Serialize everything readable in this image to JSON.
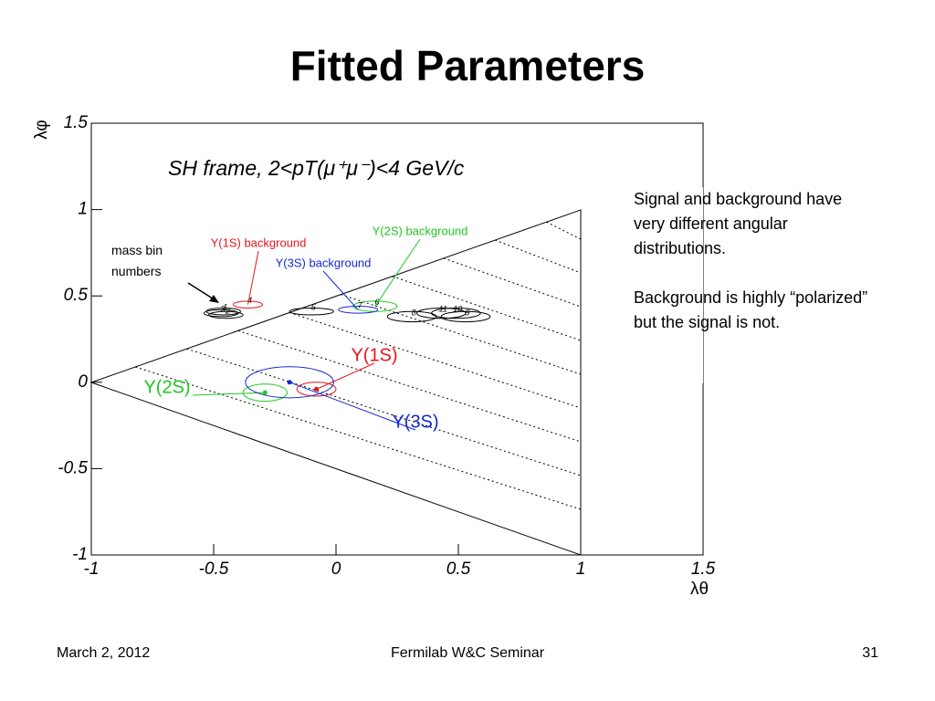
{
  "title": "Fitted Parameters",
  "side_text": [
    "Signal and background have very different angular distributions.",
    "Background is highly “polarized” but the signal is not."
  ],
  "annotation": "mass bin numbers",
  "footer": {
    "date": "March 2, 2012",
    "event": "Fermilab W&C Seminar",
    "page": "31"
  },
  "chart_data": {
    "type": "scatter",
    "title": "SH frame, 2<pT(μ⁺μ⁻)<4 GeV/c",
    "xlabel": "λθ",
    "ylabel": "λφ",
    "xlim": [
      -1,
      1.5
    ],
    "ylim": [
      -1,
      1.5
    ],
    "xticks": [
      -1,
      -0.5,
      0,
      0.5,
      1,
      1.5
    ],
    "yticks": [
      -1,
      -0.5,
      0,
      0.5,
      1,
      1.5
    ],
    "series": [
      {
        "name": "Y(1S)",
        "color": "#e8141c",
        "markers": true,
        "x": [
          -0.08
        ],
        "values": [
          -0.04
        ],
        "x_err": [
          0.08
        ],
        "y_err": [
          0.04
        ]
      },
      {
        "name": "Y(2S)",
        "color": "#1ec81e",
        "markers": true,
        "x": [
          -0.29
        ],
        "values": [
          -0.06
        ],
        "x_err": [
          0.09
        ],
        "y_err": [
          0.05
        ]
      },
      {
        "name": "Y(3S)",
        "color": "#1428d2",
        "markers": true,
        "x": [
          -0.19
        ],
        "values": [
          0.0
        ],
        "x_err": [
          0.18
        ],
        "y_err": [
          0.09
        ]
      },
      {
        "name": "Y(1S) background",
        "color": "#e8141c",
        "x": [
          -0.36
        ],
        "values": [
          0.45
        ],
        "x_err": [
          0.06
        ],
        "y_err": [
          0.02
        ],
        "labels": [
          "4"
        ]
      },
      {
        "name": "Y(2S) background",
        "color": "#1ec81e",
        "x": [
          0.16
        ],
        "values": [
          0.44
        ],
        "x_err": [
          0.09
        ],
        "y_err": [
          0.03
        ],
        "labels": [
          "6"
        ]
      },
      {
        "name": "Y(3S) background",
        "color": "#1428d2",
        "x": [
          0.09
        ],
        "values": [
          0.42
        ],
        "x_err": [
          0.08
        ],
        "y_err": [
          0.02
        ],
        "labels": [
          "7"
        ]
      },
      {
        "color": "#000000",
        "x": [
          -0.46,
          -0.45,
          -0.47,
          -0.1,
          0.31,
          0.53,
          0.49,
          0.43
        ],
        "values": [
          0.41,
          0.39,
          0.4,
          0.41,
          0.38,
          0.38,
          0.4,
          0.4
        ],
        "x_err": [
          0.07,
          0.07,
          0.07,
          0.09,
          0.1,
          0.1,
          0.1,
          0.1
        ],
        "y_err": [
          0.02,
          0.02,
          0.02,
          0.02,
          0.03,
          0.03,
          0.03,
          0.03
        ],
        "labels": [
          "1",
          "2",
          "3",
          "5",
          "8",
          "9",
          "10",
          "11"
        ]
      }
    ]
  }
}
